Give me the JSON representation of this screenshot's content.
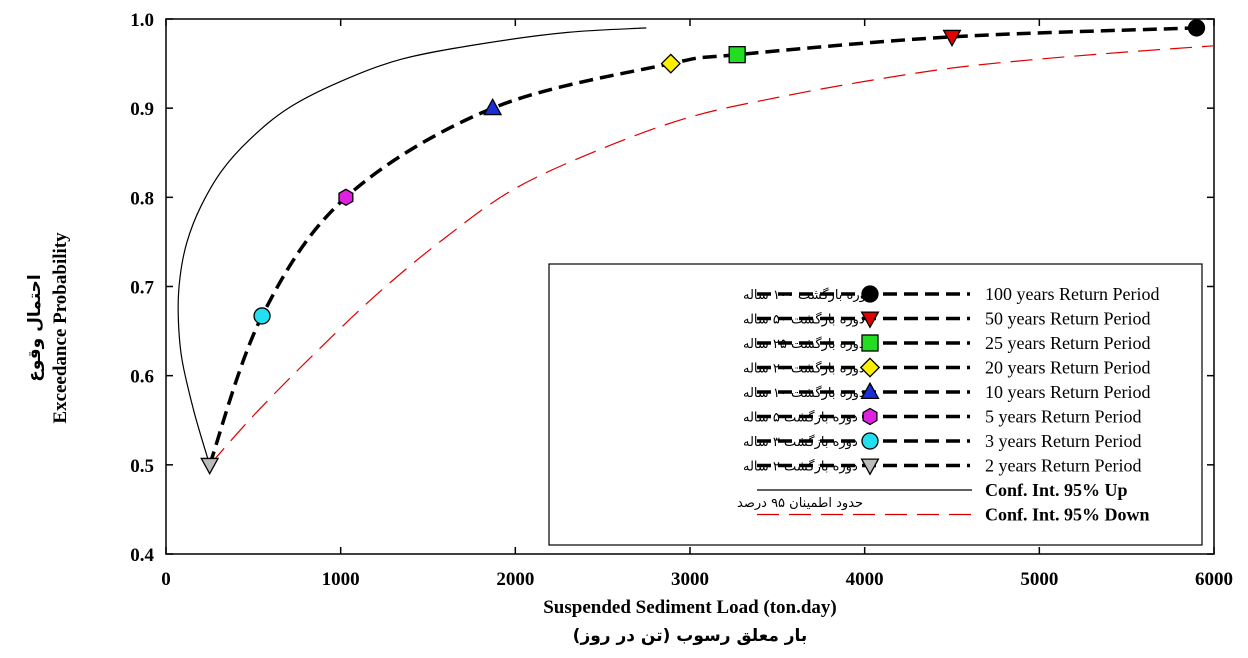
{
  "chart_data": {
    "type": "line",
    "xlabel": "Suspended Sediment Load (ton.day)",
    "xlabel_fa": "بار معلق رسوب (تن در روز)",
    "ylabel": "Exceedance Probability",
    "ylabel_fa": "احتمال وقوع",
    "xlim": [
      0,
      6000
    ],
    "ylim": [
      0.4,
      1.0
    ],
    "x_ticks": [
      0,
      1000,
      2000,
      3000,
      4000,
      5000,
      6000
    ],
    "y_ticks": [
      0.4,
      0.5,
      0.6,
      0.7,
      0.8,
      0.9,
      1.0
    ],
    "y_tick_labels": [
      "0.4",
      "0.5",
      "0.6",
      "0.7",
      "0.8",
      "0.9",
      "1.0"
    ],
    "grid": false,
    "legend_position": "bottom-right",
    "series": [
      {
        "role": "fitted",
        "style": "dashed",
        "color": "#000000",
        "x": [
          250,
          550,
          1030,
          1870,
          2890,
          3270,
          4500,
          5900
        ],
        "y": [
          0.5,
          0.667,
          0.8,
          0.9,
          0.95,
          0.96,
          0.98,
          0.99
        ]
      },
      {
        "name": "Conf. Int. 95% Up",
        "style": "solid",
        "color": "#000000",
        "x": [
          250,
          160,
          90,
          70,
          80,
          120,
          200,
          320,
          480,
          700,
          1000,
          1350,
          1800,
          2300,
          2750
        ],
        "y": [
          0.5,
          0.56,
          0.62,
          0.67,
          0.71,
          0.75,
          0.79,
          0.83,
          0.865,
          0.9,
          0.93,
          0.955,
          0.972,
          0.985,
          0.99
        ]
      },
      {
        "name": "Conf. Int. 95% Down",
        "style": "long-dash",
        "color": "#e00000",
        "x": [
          250,
          500,
          800,
          1200,
          1600,
          2000,
          2500,
          3000,
          3500,
          4000,
          4500,
          5000,
          5500,
          6000
        ],
        "y": [
          0.5,
          0.555,
          0.615,
          0.69,
          0.755,
          0.81,
          0.855,
          0.89,
          0.912,
          0.93,
          0.945,
          0.955,
          0.963,
          0.97
        ]
      }
    ],
    "points": [
      {
        "label": "100 years Return Period",
        "label_fa": "دوره بازگشت ۱۰۰ ساله",
        "x": 5900,
        "y": 0.99,
        "marker": "circle",
        "color": "#000000"
      },
      {
        "label": "50 years Return Period",
        "label_fa": "دوره بازگشت ۵۰ ساله",
        "x": 4500,
        "y": 0.98,
        "marker": "triangle-down",
        "color": "#e00000"
      },
      {
        "label": "25 years Return Period",
        "label_fa": "دوره بازگشت ۲۵ ساله",
        "x": 3270,
        "y": 0.96,
        "marker": "square",
        "color": "#22dd22"
      },
      {
        "label": "20 years Return Period",
        "label_fa": "دوره بازگشت ۲۰ ساله",
        "x": 2890,
        "y": 0.95,
        "marker": "diamond",
        "color": "#ffee00"
      },
      {
        "label": "10 years Return Period",
        "label_fa": "دوره بازگشت ۱۰ ساله",
        "x": 1870,
        "y": 0.9,
        "marker": "triangle-up",
        "color": "#1a2ed8"
      },
      {
        "label": "5 years Return Period",
        "label_fa": "دوره بازگشت ۵ ساله",
        "x": 1030,
        "y": 0.8,
        "marker": "hexagon",
        "color": "#e020e0"
      },
      {
        "label": "3 years Return Period",
        "label_fa": "دوره بازگشت ۳ ساله",
        "x": 550,
        "y": 0.667,
        "marker": "circle",
        "color": "#22e0f0"
      },
      {
        "label": "2 years Return Period",
        "label_fa": "دوره بازگشت ۲ ساله",
        "x": 250,
        "y": 0.5,
        "marker": "triangle-down",
        "color": "#bbbbbb"
      }
    ],
    "legend": {
      "ci_label_fa": "حدود اطمینان ۹۵ درصد",
      "ci_up_label": "Conf. Int. 95% Up",
      "ci_down_label": "Conf. Int. 95% Down"
    }
  }
}
